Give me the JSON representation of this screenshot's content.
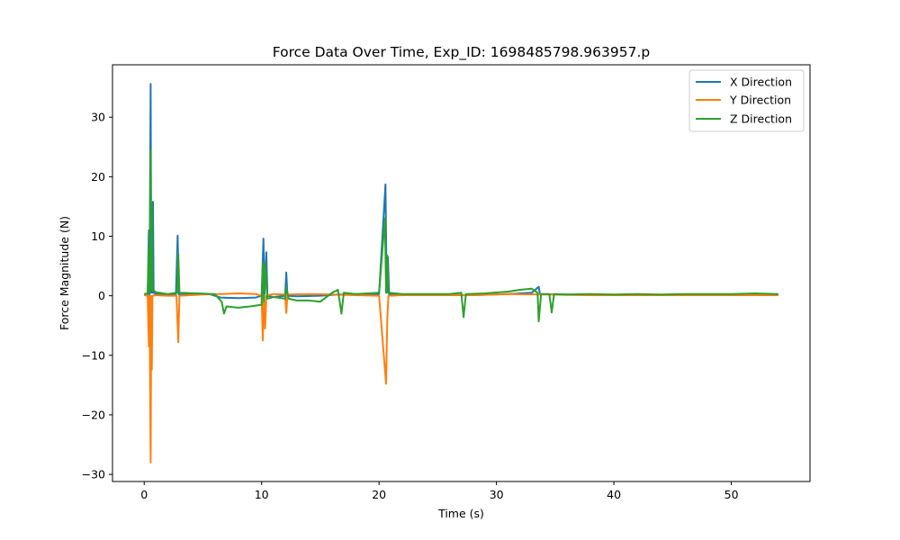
{
  "chart_data": {
    "type": "line",
    "title": "Force Data Over Time, Exp_ID: 1698485798.963957.p",
    "xlabel": "Time (s)",
    "ylabel": "Force Magnitude (N)",
    "xlim": [
      -2.7,
      56.7
    ],
    "ylim": [
      -31.2,
      38.8
    ],
    "x_ticks": [
      0,
      10,
      20,
      30,
      40,
      50
    ],
    "y_ticks": [
      -30,
      -20,
      -10,
      0,
      10,
      20,
      30
    ],
    "x_tick_labels": [
      "0",
      "10",
      "20",
      "30",
      "40",
      "50"
    ],
    "y_tick_labels": [
      "−30",
      "−20",
      "−10",
      "0",
      "10",
      "20",
      "30"
    ],
    "grid": false,
    "legend_position": "top-right",
    "series": [
      {
        "name": "X Direction",
        "color": "#1f77b4",
        "points": [
          [
            0.0,
            0.2
          ],
          [
            0.3,
            0.3
          ],
          [
            0.4,
            11.0
          ],
          [
            0.45,
            0.0
          ],
          [
            0.55,
            35.6
          ],
          [
            0.6,
            0.5
          ],
          [
            0.65,
            12.0
          ],
          [
            0.7,
            0.5
          ],
          [
            0.75,
            15.8
          ],
          [
            0.8,
            0.5
          ],
          [
            1.0,
            0.3
          ],
          [
            2.0,
            0.2
          ],
          [
            2.7,
            0.3
          ],
          [
            2.85,
            10.1
          ],
          [
            2.95,
            0.2
          ],
          [
            4.0,
            0.2
          ],
          [
            5.5,
            0.3
          ],
          [
            6.5,
            -0.3
          ],
          [
            8.0,
            -0.4
          ],
          [
            9.5,
            -0.3
          ],
          [
            10.0,
            0.0
          ],
          [
            10.15,
            9.6
          ],
          [
            10.25,
            0.3
          ],
          [
            10.4,
            7.3
          ],
          [
            10.5,
            0.0
          ],
          [
            11.0,
            -0.2
          ],
          [
            12.0,
            0.0
          ],
          [
            12.1,
            3.9
          ],
          [
            12.2,
            0.0
          ],
          [
            13.0,
            -0.1
          ],
          [
            15.0,
            0.0
          ],
          [
            16.5,
            0.2
          ],
          [
            18.0,
            0.3
          ],
          [
            20.0,
            0.3
          ],
          [
            20.55,
            18.7
          ],
          [
            20.65,
            0.5
          ],
          [
            20.75,
            6.5
          ],
          [
            20.85,
            0.3
          ],
          [
            22.0,
            0.2
          ],
          [
            25.0,
            0.2
          ],
          [
            28.0,
            0.1
          ],
          [
            31.0,
            0.3
          ],
          [
            33.0,
            0.5
          ],
          [
            33.6,
            1.5
          ],
          [
            33.7,
            0.3
          ],
          [
            36.0,
            0.2
          ],
          [
            40.0,
            0.1
          ],
          [
            45.0,
            0.1
          ],
          [
            50.0,
            0.1
          ],
          [
            54.0,
            0.2
          ]
        ]
      },
      {
        "name": "Y Direction",
        "color": "#ff7f0e",
        "points": [
          [
            0.0,
            0.1
          ],
          [
            0.3,
            0.0
          ],
          [
            0.4,
            -8.5
          ],
          [
            0.45,
            0.0
          ],
          [
            0.55,
            -28.0
          ],
          [
            0.6,
            0.0
          ],
          [
            0.65,
            -12.4
          ],
          [
            0.7,
            0.0
          ],
          [
            1.0,
            0.1
          ],
          [
            2.0,
            0.0
          ],
          [
            2.75,
            0.0
          ],
          [
            2.9,
            -7.8
          ],
          [
            3.0,
            0.0
          ],
          [
            5.0,
            0.2
          ],
          [
            6.5,
            0.3
          ],
          [
            8.0,
            0.4
          ],
          [
            9.5,
            0.3
          ],
          [
            10.0,
            0.0
          ],
          [
            10.1,
            -7.5
          ],
          [
            10.2,
            0.0
          ],
          [
            10.3,
            -5.5
          ],
          [
            10.4,
            0.0
          ],
          [
            11.0,
            0.3
          ],
          [
            12.0,
            0.2
          ],
          [
            12.1,
            -2.9
          ],
          [
            12.2,
            0.2
          ],
          [
            14.0,
            0.3
          ],
          [
            16.0,
            0.2
          ],
          [
            18.0,
            0.1
          ],
          [
            20.0,
            0.0
          ],
          [
            20.6,
            -14.8
          ],
          [
            20.7,
            -4.0
          ],
          [
            20.8,
            0.0
          ],
          [
            22.0,
            0.1
          ],
          [
            25.0,
            0.1
          ],
          [
            28.0,
            0.1
          ],
          [
            31.0,
            0.3
          ],
          [
            34.0,
            0.2
          ],
          [
            38.0,
            0.1
          ],
          [
            44.0,
            0.1
          ],
          [
            50.0,
            0.1
          ],
          [
            54.0,
            0.1
          ]
        ]
      },
      {
        "name": "Z Direction",
        "color": "#2ca02c",
        "points": [
          [
            0.0,
            0.3
          ],
          [
            0.3,
            0.4
          ],
          [
            0.4,
            8.0
          ],
          [
            0.45,
            0.5
          ],
          [
            0.55,
            24.5
          ],
          [
            0.6,
            1.0
          ],
          [
            0.65,
            15.5
          ],
          [
            0.7,
            1.0
          ],
          [
            1.0,
            0.6
          ],
          [
            2.0,
            0.3
          ],
          [
            2.8,
            0.5
          ],
          [
            2.9,
            7.0
          ],
          [
            3.0,
            0.5
          ],
          [
            4.5,
            0.4
          ],
          [
            6.0,
            0.3
          ],
          [
            6.6,
            -1.0
          ],
          [
            6.8,
            -3.0
          ],
          [
            7.0,
            -1.8
          ],
          [
            8.0,
            -2.0
          ],
          [
            9.0,
            -1.8
          ],
          [
            10.0,
            -1.5
          ],
          [
            10.1,
            5.5
          ],
          [
            10.2,
            -1.0
          ],
          [
            10.3,
            5.5
          ],
          [
            10.5,
            -0.5
          ],
          [
            11.0,
            -0.2
          ],
          [
            12.0,
            -0.5
          ],
          [
            12.1,
            1.5
          ],
          [
            12.3,
            -0.5
          ],
          [
            13.0,
            -0.8
          ],
          [
            14.0,
            -0.8
          ],
          [
            15.0,
            -1.0
          ],
          [
            16.0,
            0.5
          ],
          [
            16.5,
            1.0
          ],
          [
            16.8,
            -3.0
          ],
          [
            17.0,
            0.5
          ],
          [
            18.0,
            0.3
          ],
          [
            20.0,
            0.5
          ],
          [
            20.5,
            13.0
          ],
          [
            20.6,
            0.5
          ],
          [
            20.7,
            6.8
          ],
          [
            20.8,
            0.5
          ],
          [
            22.0,
            0.3
          ],
          [
            24.0,
            0.3
          ],
          [
            26.0,
            0.3
          ],
          [
            27.0,
            0.5
          ],
          [
            27.2,
            -3.6
          ],
          [
            27.4,
            0.3
          ],
          [
            29.0,
            0.4
          ],
          [
            31.0,
            0.7
          ],
          [
            32.0,
            1.0
          ],
          [
            33.0,
            1.2
          ],
          [
            33.5,
            0.5
          ],
          [
            33.6,
            -4.3
          ],
          [
            33.8,
            0.3
          ],
          [
            34.5,
            0.3
          ],
          [
            34.7,
            -2.8
          ],
          [
            34.9,
            0.3
          ],
          [
            36.0,
            0.2
          ],
          [
            38.0,
            0.3
          ],
          [
            40.0,
            0.2
          ],
          [
            42.0,
            0.3
          ],
          [
            44.0,
            0.2
          ],
          [
            46.0,
            0.3
          ],
          [
            48.0,
            0.3
          ],
          [
            50.0,
            0.3
          ],
          [
            52.0,
            0.4
          ],
          [
            54.0,
            0.3
          ]
        ]
      }
    ]
  }
}
